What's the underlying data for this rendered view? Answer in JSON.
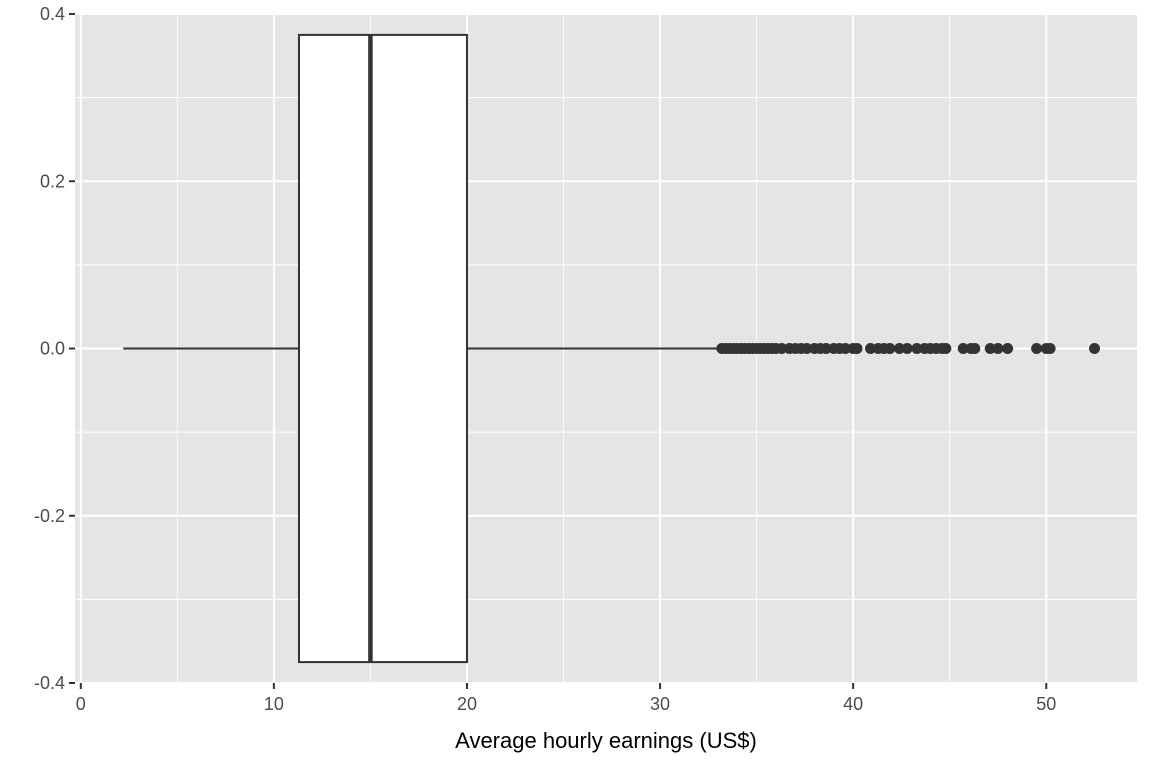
{
  "chart_data": {
    "type": "boxplot",
    "orientation": "horizontal",
    "xlabel": "Average hourly earnings (US$)",
    "ylabel": "",
    "xlim": [
      -0.3,
      54.7
    ],
    "ylim": [
      -0.4,
      0.4
    ],
    "x_ticks": [
      0,
      10,
      20,
      30,
      40,
      50
    ],
    "x_tick_labels": [
      "0",
      "10",
      "20",
      "30",
      "40",
      "50"
    ],
    "y_ticks": [
      -0.4,
      -0.2,
      0.0,
      0.2,
      0.4
    ],
    "y_tick_labels": [
      "-0.4",
      "-0.2",
      "0.0",
      "0.2",
      "0.4"
    ],
    "grid": true,
    "box": {
      "y_center": 0,
      "y_half_width": 0.375,
      "whisker_low": 2.2,
      "q1": 11.3,
      "median": 15.0,
      "q3": 20.0,
      "whisker_high": 33.0
    },
    "outliers": [
      33.2,
      33.4,
      33.6,
      33.8,
      34.0,
      34.2,
      34.4,
      34.6,
      34.8,
      35.0,
      35.2,
      35.4,
      35.6,
      35.8,
      36.0,
      36.3,
      36.7,
      37.0,
      37.3,
      37.6,
      38.0,
      38.3,
      38.6,
      39.0,
      39.3,
      39.6,
      40.0,
      40.2,
      40.9,
      41.3,
      41.6,
      41.9,
      42.4,
      42.8,
      43.3,
      43.7,
      44.0,
      44.3,
      44.6,
      44.8,
      45.7,
      46.1,
      46.3,
      47.1,
      47.5,
      48.0,
      49.5,
      50.0,
      50.2,
      52.5
    ],
    "colors": {
      "panel_background": "#e5e5e5",
      "grid_major": "#ffffff",
      "box_fill": "#ffffff",
      "stroke": "#333333",
      "point": "#333333",
      "tick_text": "#4d4d4d",
      "axis_title": "#000000"
    }
  }
}
